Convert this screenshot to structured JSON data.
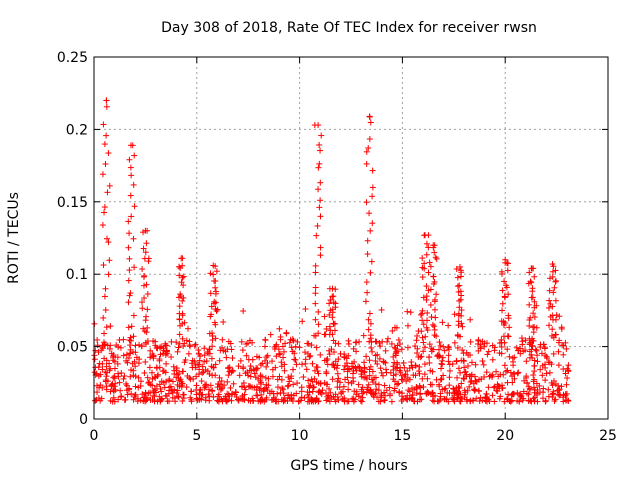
{
  "chart_data": {
    "type": "scatter",
    "title": "Day 308 of 2018, Rate Of TEC Index for receiver rwsn",
    "xlabel": "GPS time / hours",
    "ylabel": "ROTI / TECUs",
    "xlim": [
      0,
      25
    ],
    "ylim": [
      0,
      0.25
    ],
    "x_ticks": [
      0,
      5,
      10,
      15,
      20,
      25
    ],
    "x_tick_labels": [
      "0",
      "5",
      "10",
      "15",
      "20",
      "25"
    ],
    "y_ticks": [
      0,
      0.05,
      0.1,
      0.15,
      0.2,
      0.25
    ],
    "y_tick_labels": [
      "0",
      "0.05",
      "0.1",
      "0.15",
      "0.2",
      "0.25"
    ],
    "grid": true,
    "marker": "+",
    "series": [
      {
        "name": "ROTI",
        "color": "#ff0000",
        "x_range": [
          0,
          23.1
        ],
        "baseline_band": [
          0.012,
          0.055
        ],
        "peaks": [
          {
            "x": 0.6,
            "y": 0.22
          },
          {
            "x": 1.8,
            "y": 0.189
          },
          {
            "x": 2.5,
            "y": 0.13
          },
          {
            "x": 4.3,
            "y": 0.111
          },
          {
            "x": 5.8,
            "y": 0.106
          },
          {
            "x": 10.9,
            "y": 0.203
          },
          {
            "x": 11.6,
            "y": 0.09
          },
          {
            "x": 13.4,
            "y": 0.209
          },
          {
            "x": 16.1,
            "y": 0.127
          },
          {
            "x": 16.5,
            "y": 0.12
          },
          {
            "x": 17.8,
            "y": 0.105
          },
          {
            "x": 20.0,
            "y": 0.11
          },
          {
            "x": 21.3,
            "y": 0.104
          },
          {
            "x": 22.3,
            "y": 0.107
          }
        ]
      }
    ]
  }
}
